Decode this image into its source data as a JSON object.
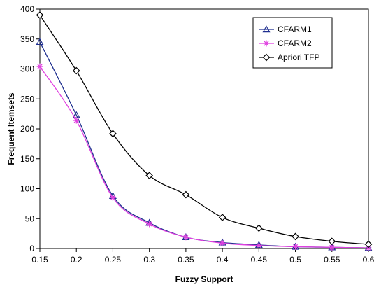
{
  "chart_data": {
    "type": "line",
    "title": "",
    "xlabel": "Fuzzy Support",
    "ylabel": "Frequent Itemsets",
    "x": [
      0.15,
      0.2,
      0.25,
      0.3,
      0.35,
      0.4,
      0.45,
      0.5,
      0.55,
      0.6
    ],
    "x_tick_labels": [
      "0.15",
      "0.2",
      "0.25",
      "0.3",
      "0.35",
      "0.4",
      "0.45",
      "0.5",
      "0.55",
      "0.6"
    ],
    "xlim": [
      0.15,
      0.6
    ],
    "ylim": [
      0,
      400
    ],
    "y_ticks": [
      0,
      50,
      100,
      150,
      200,
      250,
      300,
      350,
      400
    ],
    "grid": false,
    "legend_position": "top-right",
    "series": [
      {
        "name": "CFARM1",
        "color": "#1f2f8f",
        "marker": "triangle",
        "values": [
          345,
          223,
          88,
          43,
          19,
          10,
          6,
          3,
          2,
          1
        ]
      },
      {
        "name": "CFARM2",
        "color": "#e040e0",
        "marker": "star",
        "values": [
          304,
          214,
          85,
          41,
          19,
          9,
          5,
          3,
          2,
          1
        ]
      },
      {
        "name": "Apriori TFP",
        "color": "#000000",
        "marker": "diamond",
        "values": [
          390,
          297,
          192,
          122,
          90,
          52,
          34,
          20,
          12,
          7
        ]
      }
    ]
  }
}
